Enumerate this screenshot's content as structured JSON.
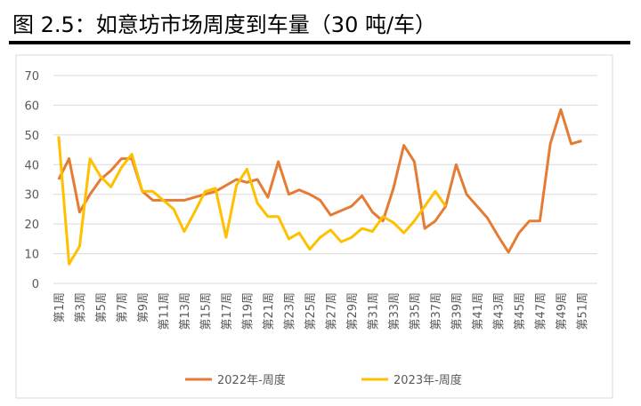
{
  "chart_data": {
    "type": "line",
    "title": "图 2.5：如意坊市场周度到车量（30 吨/车）",
    "categories": [
      "第1周",
      null,
      "第3周",
      null,
      "第5周",
      null,
      "第7周",
      null,
      "第9周",
      null,
      "第11周",
      null,
      "第13周",
      null,
      "第15周",
      null,
      "第17周",
      null,
      "第19周",
      null,
      "第21周",
      null,
      "第23周",
      null,
      "第25周",
      null,
      "第27周",
      null,
      "第29周",
      null,
      "第31周",
      null,
      "第33周",
      null,
      "第35周",
      null,
      "第37周",
      null,
      "第39周",
      null,
      "第41周",
      null,
      "第43周",
      null,
      "第45周",
      null,
      "第47周",
      null,
      "第49周",
      null,
      "第51周",
      null
    ],
    "series": [
      {
        "name": "2022年-周度",
        "color": "#E57C35",
        "values": [
          35,
          42,
          24,
          30,
          35,
          38,
          42,
          42,
          31,
          28,
          28,
          28,
          28,
          29,
          30,
          31,
          33,
          35,
          34,
          35,
          29,
          41,
          30,
          31.5,
          30,
          28,
          23,
          24.5,
          26,
          29.5,
          24,
          21,
          32,
          46.5,
          41,
          18.5,
          21,
          26,
          40,
          30,
          26,
          22,
          16,
          10.5,
          17,
          21,
          21,
          47,
          58.5,
          47,
          48,
          null
        ]
      },
      {
        "name": "2023年-周度",
        "color": "#FFC000",
        "values": [
          49.5,
          6.5,
          12.5,
          42,
          36,
          32.5,
          39,
          43.5,
          31,
          31,
          28,
          25,
          17.5,
          24,
          31,
          32,
          15.5,
          33,
          38.5,
          27,
          22.5,
          22.5,
          15,
          17,
          11.5,
          15.5,
          18,
          14,
          15.5,
          18.5,
          17.5,
          22.5,
          20.5,
          17,
          21,
          26,
          31,
          26,
          null,
          null,
          null,
          null,
          null,
          null,
          null,
          null,
          null,
          null,
          null,
          null,
          null,
          null
        ]
      }
    ],
    "ylim": [
      0,
      70
    ],
    "yticks": [
      0,
      10,
      20,
      30,
      40,
      50,
      60,
      70
    ],
    "grid": true
  }
}
